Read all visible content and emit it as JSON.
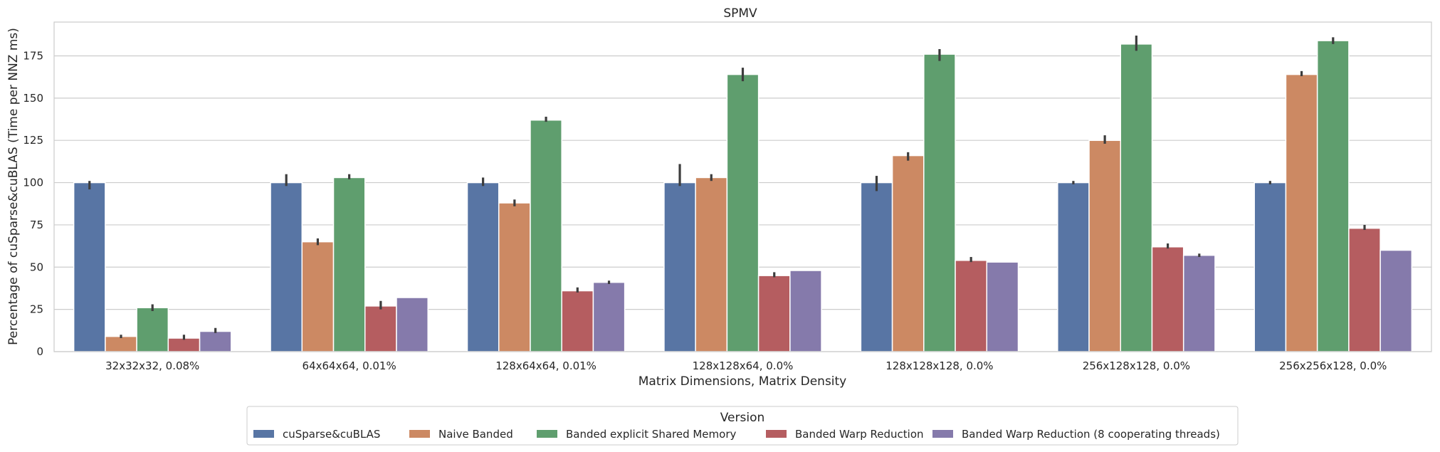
{
  "chart_data": {
    "type": "bar",
    "title": "SPMV",
    "xlabel": "Matrix Dimensions, Matrix Density",
    "ylabel": "Percentage of cuSparse&cuBLAS (Time per NNZ ms)",
    "ylim": [
      0,
      195
    ],
    "yticks": [
      0,
      25,
      50,
      75,
      100,
      125,
      150,
      175
    ],
    "grid": "horizontal",
    "categories": [
      "32x32x32, 0.08%",
      "64x64x64, 0.01%",
      "128x64x64, 0.01%",
      "128x128x64, 0.0%",
      "128x128x128, 0.0%",
      "256x128x128, 0.0%",
      "256x256x128, 0.0%"
    ],
    "legend_title": "Version",
    "legend_placement": "bottom-center",
    "series": [
      {
        "name": "cuSparse&cuBLAS",
        "color": "#5875a4",
        "values": [
          100,
          100,
          100,
          100,
          100,
          100,
          100
        ],
        "err_low": [
          96,
          98,
          98,
          98,
          95,
          99,
          99
        ],
        "err_high": [
          101,
          105,
          103,
          111,
          104,
          101,
          101
        ]
      },
      {
        "name": "Naive Banded",
        "color": "#cc8963",
        "values": [
          9,
          65,
          88,
          103,
          116,
          125,
          164
        ],
        "err_low": [
          8,
          63,
          86,
          101,
          113,
          123,
          163
        ],
        "err_high": [
          10,
          67,
          90,
          105,
          118,
          128,
          166
        ]
      },
      {
        "name": "Banded explicit Shared Memory",
        "color": "#5f9e6e",
        "values": [
          26,
          103,
          137,
          164,
          176,
          182,
          184
        ],
        "err_low": [
          24,
          102,
          136,
          160,
          172,
          178,
          182
        ],
        "err_high": [
          28,
          105,
          139,
          168,
          179,
          187,
          186
        ]
      },
      {
        "name": "Banded Warp Reduction",
        "color": "#b55d60",
        "values": [
          8,
          27,
          36,
          45,
          54,
          62,
          73
        ],
        "err_low": [
          7,
          25,
          35,
          44,
          53,
          61,
          72
        ],
        "err_high": [
          10,
          30,
          38,
          47,
          56,
          64,
          75
        ]
      },
      {
        "name": "Banded Warp Reduction (8 cooperating threads)",
        "color": "#857aab",
        "values": [
          12,
          32,
          41,
          48,
          53,
          57,
          60
        ],
        "err_low": [
          11,
          32,
          40,
          48,
          53,
          56,
          60
        ],
        "err_high": [
          14,
          32,
          42,
          48,
          53,
          58,
          60
        ]
      }
    ]
  }
}
